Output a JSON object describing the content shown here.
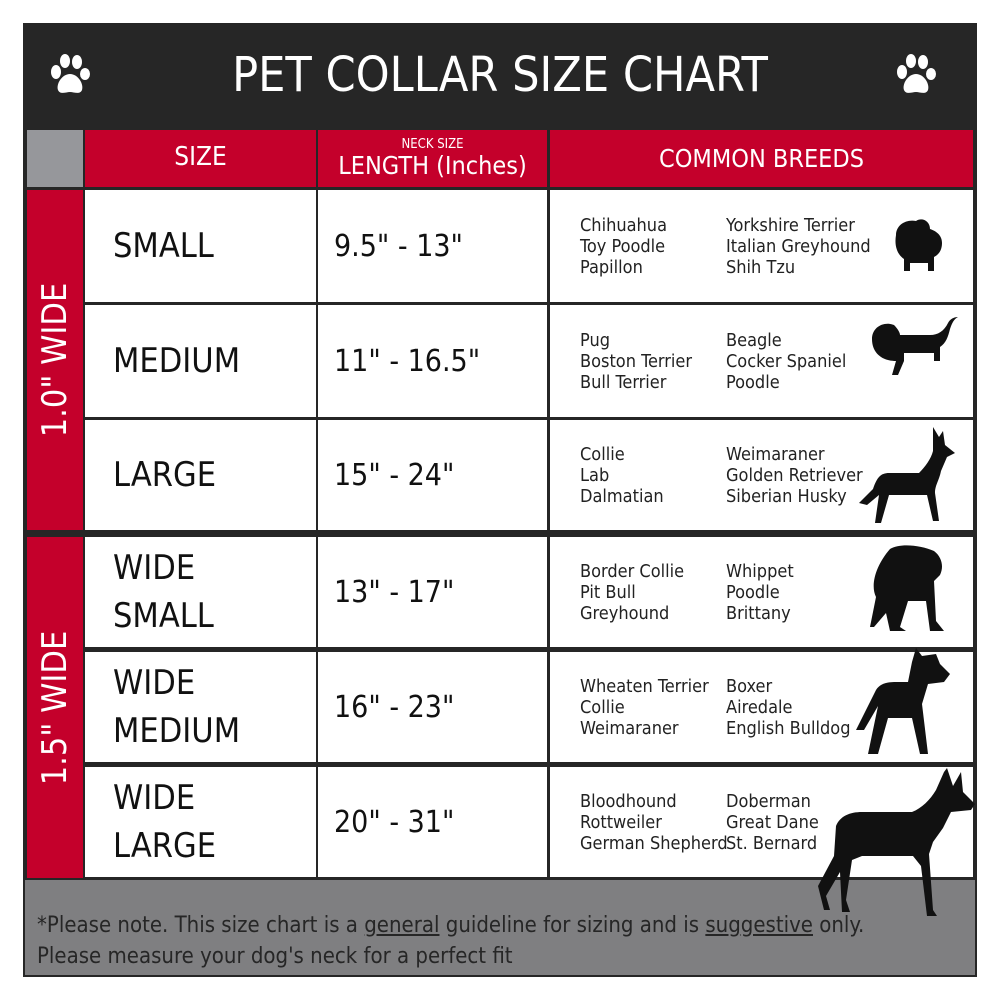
{
  "title": "PET COLLAR SIZE CHART",
  "header": {
    "size": "SIZE",
    "length_small": "NECK SIZE",
    "length": "LENGTH (Inches)",
    "breeds": "COMMON BREEDS"
  },
  "colors": {
    "red": "#c4002b",
    "dark": "#262626",
    "gray": "#7f7f81"
  },
  "groups": [
    {
      "label": "1.0\" WIDE"
    },
    {
      "label": "1.5\" WIDE"
    }
  ],
  "rows": [
    {
      "size": [
        "SMALL"
      ],
      "length": "9.5\" - 13\"",
      "breeds_a": [
        "Chihuahua",
        "Toy Poodle",
        "Papillon"
      ],
      "breeds_b": [
        "Yorkshire Terrier",
        "Italian Greyhound",
        "Shih Tzu"
      ],
      "icon": "small-dog-silhouette-icon"
    },
    {
      "size": [
        "MEDIUM"
      ],
      "length": "11\" - 16.5\"",
      "breeds_a": [
        "Pug",
        "Boston Terrier",
        "Bull Terrier"
      ],
      "breeds_b": [
        "Beagle",
        "Cocker Spaniel",
        "Poodle"
      ],
      "icon": "medium-dog-silhouette-icon"
    },
    {
      "size": [
        "LARGE"
      ],
      "length": "15\" - 24\"",
      "breeds_a": [
        "Collie",
        "Lab",
        "Dalmatian"
      ],
      "breeds_b": [
        "Weimaraner",
        "Golden Retriever",
        "Siberian Husky"
      ],
      "icon": "large-dog-silhouette-icon"
    },
    {
      "size": [
        "WIDE",
        "SMALL"
      ],
      "length": "13\" - 17\"",
      "breeds_a": [
        "Border Collie",
        "Pit Bull",
        "Greyhound"
      ],
      "breeds_b": [
        "Whippet",
        "Poodle",
        "Brittany"
      ],
      "icon": "bulldog-silhouette-icon"
    },
    {
      "size": [
        "WIDE",
        "MEDIUM"
      ],
      "length": "16\" - 23\"",
      "breeds_a": [
        "Wheaten Terrier",
        "Collie",
        "Weimaraner"
      ],
      "breeds_b": [
        "Boxer",
        "Airedale",
        "English Bulldog"
      ],
      "icon": "pitbull-silhouette-icon"
    },
    {
      "size": [
        "WIDE",
        "LARGE"
      ],
      "length": "20\" - 31\"",
      "breeds_a": [
        "Bloodhound",
        "Rottweiler",
        "German Shepherd"
      ],
      "breeds_b": [
        "Doberman",
        "Great Dane",
        "St. Bernard"
      ],
      "icon": "doberman-silhouette-icon"
    }
  ],
  "footer": {
    "p1": "*Please note. This size chart is a ",
    "u1": "general",
    "p2": " guideline for sizing and is ",
    "u2": "suggestive",
    "p3": " only.",
    "line2": "Please measure your dog's neck for a perfect fit"
  }
}
